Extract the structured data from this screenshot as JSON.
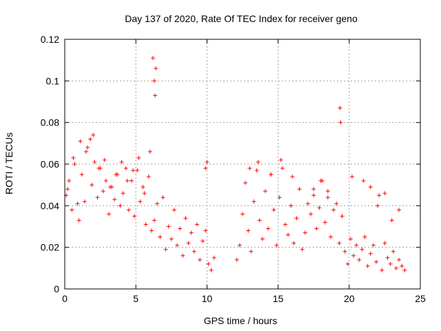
{
  "chart_data": {
    "type": "scatter",
    "title": "Day 137 of 2020, Rate Of TEC Index for receiver geno",
    "xlabel": "GPS time / hours",
    "ylabel": "ROTI / TECUs",
    "xlim": [
      0,
      25
    ],
    "ylim": [
      0,
      0.12
    ],
    "x_ticks": [
      "0",
      "5",
      "10",
      "15",
      "20",
      "25"
    ],
    "y_ticks": [
      "0",
      "0.02",
      "0.04",
      "0.06",
      "0.08",
      "0.1",
      "0.12"
    ],
    "grid": true,
    "marker": "+",
    "color": "#ff0000",
    "series": [
      {
        "x": [
          0.1,
          0.3,
          0.5,
          0.7,
          0.9,
          1.0,
          1.2,
          1.4,
          1.6,
          1.8,
          1.9,
          2.1,
          2.3,
          2.5,
          2.7,
          2.9,
          3.1,
          3.3,
          3.5,
          3.7,
          3.9,
          4.1,
          4.3,
          4.5,
          4.7,
          4.9,
          5.1,
          5.3,
          5.5,
          5.7,
          5.9,
          6.1,
          6.3,
          6.5,
          6.7,
          6.9,
          7.1,
          7.3,
          7.5,
          7.7,
          7.9,
          8.1,
          8.3,
          8.5,
          8.7,
          8.9,
          9.1,
          9.3,
          9.5,
          9.7,
          9.9,
          10.1,
          10.3,
          10.5,
          12.1,
          12.3,
          12.5,
          12.7,
          12.9,
          13.1,
          13.3,
          13.5,
          13.7,
          13.9,
          14.1,
          14.3,
          14.5,
          14.7,
          14.9,
          15.1,
          15.3,
          15.5,
          15.7,
          15.9,
          16.1,
          16.3,
          16.5,
          16.7,
          16.9,
          17.1,
          17.3,
          17.5,
          17.7,
          17.9,
          18.1,
          18.3,
          18.5,
          18.7,
          18.9,
          19.1,
          19.3,
          19.5,
          19.7,
          19.9,
          20.1,
          20.3,
          20.5,
          20.7,
          20.9,
          21.1,
          21.3,
          21.5,
          21.7,
          21.9,
          22.1,
          22.3,
          22.5,
          22.7,
          22.9,
          23.1,
          23.3,
          23.5,
          23.7,
          23.9,
          0.2,
          0.6,
          1.1,
          1.5,
          2.0,
          2.4,
          2.8,
          3.2,
          3.6,
          4.0,
          4.4,
          4.8,
          5.2,
          5.6,
          6.0,
          6.2,
          6.3,
          6.35,
          6.4,
          9.9,
          10.0,
          13.0,
          13.6,
          14.5,
          15.2,
          16.0,
          17.5,
          18.0,
          18.5,
          19.35,
          19.4,
          20.2,
          21.0,
          21.5,
          22.0,
          22.5,
          23.0,
          23.5
        ],
        "y": [
          0.045,
          0.052,
          0.038,
          0.06,
          0.041,
          0.033,
          0.055,
          0.042,
          0.068,
          0.072,
          0.05,
          0.061,
          0.044,
          0.058,
          0.047,
          0.052,
          0.036,
          0.049,
          0.043,
          0.055,
          0.04,
          0.046,
          0.058,
          0.038,
          0.052,
          0.035,
          0.057,
          0.042,
          0.049,
          0.031,
          0.054,
          0.028,
          0.033,
          0.041,
          0.025,
          0.044,
          0.019,
          0.03,
          0.024,
          0.038,
          0.021,
          0.029,
          0.016,
          0.034,
          0.022,
          0.027,
          0.018,
          0.031,
          0.014,
          0.023,
          0.028,
          0.012,
          0.009,
          0.015,
          0.014,
          0.021,
          0.036,
          0.051,
          0.028,
          0.018,
          0.042,
          0.057,
          0.033,
          0.024,
          0.047,
          0.029,
          0.055,
          0.038,
          0.021,
          0.044,
          0.058,
          0.031,
          0.026,
          0.04,
          0.022,
          0.034,
          0.048,
          0.019,
          0.027,
          0.041,
          0.036,
          0.045,
          0.029,
          0.039,
          0.052,
          0.032,
          0.044,
          0.025,
          0.038,
          0.041,
          0.022,
          0.035,
          0.018,
          0.012,
          0.024,
          0.016,
          0.021,
          0.014,
          0.019,
          0.025,
          0.011,
          0.017,
          0.021,
          0.013,
          0.045,
          0.009,
          0.022,
          0.015,
          0.012,
          0.018,
          0.01,
          0.014,
          0.011,
          0.009,
          0.048,
          0.063,
          0.071,
          0.066,
          0.074,
          0.058,
          0.062,
          0.049,
          0.055,
          0.061,
          0.052,
          0.057,
          0.063,
          0.046,
          0.066,
          0.111,
          0.1,
          0.093,
          0.106,
          0.058,
          0.061,
          0.058,
          0.061,
          0.055,
          0.062,
          0.054,
          0.048,
          0.052,
          0.047,
          0.087,
          0.08,
          0.054,
          0.052,
          0.049,
          0.04,
          0.046,
          0.033,
          0.038
        ]
      }
    ]
  }
}
